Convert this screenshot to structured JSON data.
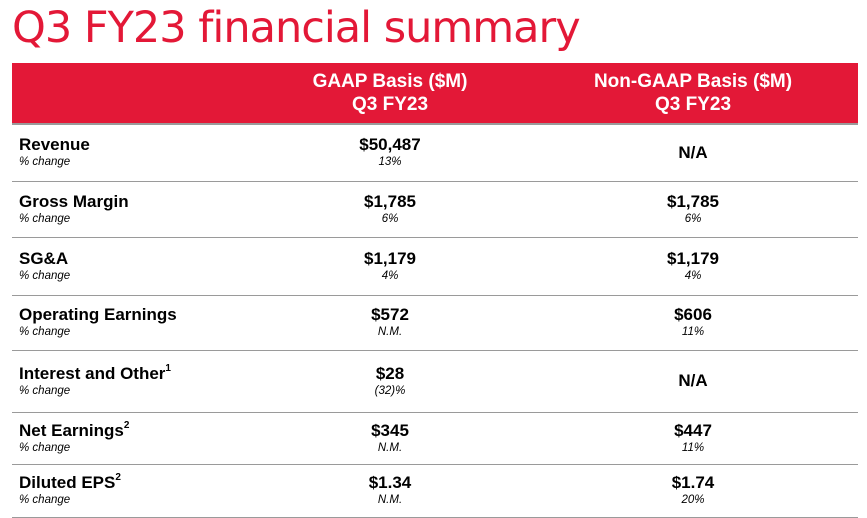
{
  "title": "Q3 FY23 financial summary",
  "colors": {
    "accent": "#e31837",
    "rule": "#9a9a9a"
  },
  "table": {
    "headers": {
      "gaap": {
        "line1": "GAAP Basis ($M)",
        "line2": "Q3 FY23"
      },
      "nongaap": {
        "line1": "Non-GAAP Basis ($M)",
        "line2": "Q3 FY23"
      }
    },
    "rows": [
      {
        "label": "Revenue",
        "sup": "",
        "sub": "% change",
        "gaap": "$50,487",
        "gaap_change": "13%",
        "nongaap": "N/A",
        "nongaap_change": ""
      },
      {
        "label": "Gross Margin",
        "sup": "",
        "sub": "% change",
        "gaap": "$1,785",
        "gaap_change": "6%",
        "nongaap": "$1,785",
        "nongaap_change": "6%"
      },
      {
        "label": "SG&A",
        "sup": "",
        "sub": "% change",
        "gaap": "$1,179",
        "gaap_change": "4%",
        "nongaap": "$1,179",
        "nongaap_change": "4%"
      },
      {
        "label": "Operating Earnings",
        "sup": "",
        "sub": "% change",
        "gaap": "$572",
        "gaap_change": "N.M.",
        "nongaap": "$606",
        "nongaap_change": "11%"
      },
      {
        "label": "Interest and Other",
        "sup": "1",
        "sub": "% change",
        "gaap": "$28",
        "gaap_change": "(32)%",
        "nongaap": "N/A",
        "nongaap_change": ""
      },
      {
        "label": "Net Earnings",
        "sup": "2",
        "sub": "% change",
        "gaap": "$345",
        "gaap_change": "N.M.",
        "nongaap": "$447",
        "nongaap_change": "11%"
      },
      {
        "label": "Diluted EPS",
        "sup": "2",
        "sub": "% change",
        "gaap": "$1.34",
        "gaap_change": "N.M.",
        "nongaap": "$1.74",
        "nongaap_change": "20%"
      }
    ]
  }
}
